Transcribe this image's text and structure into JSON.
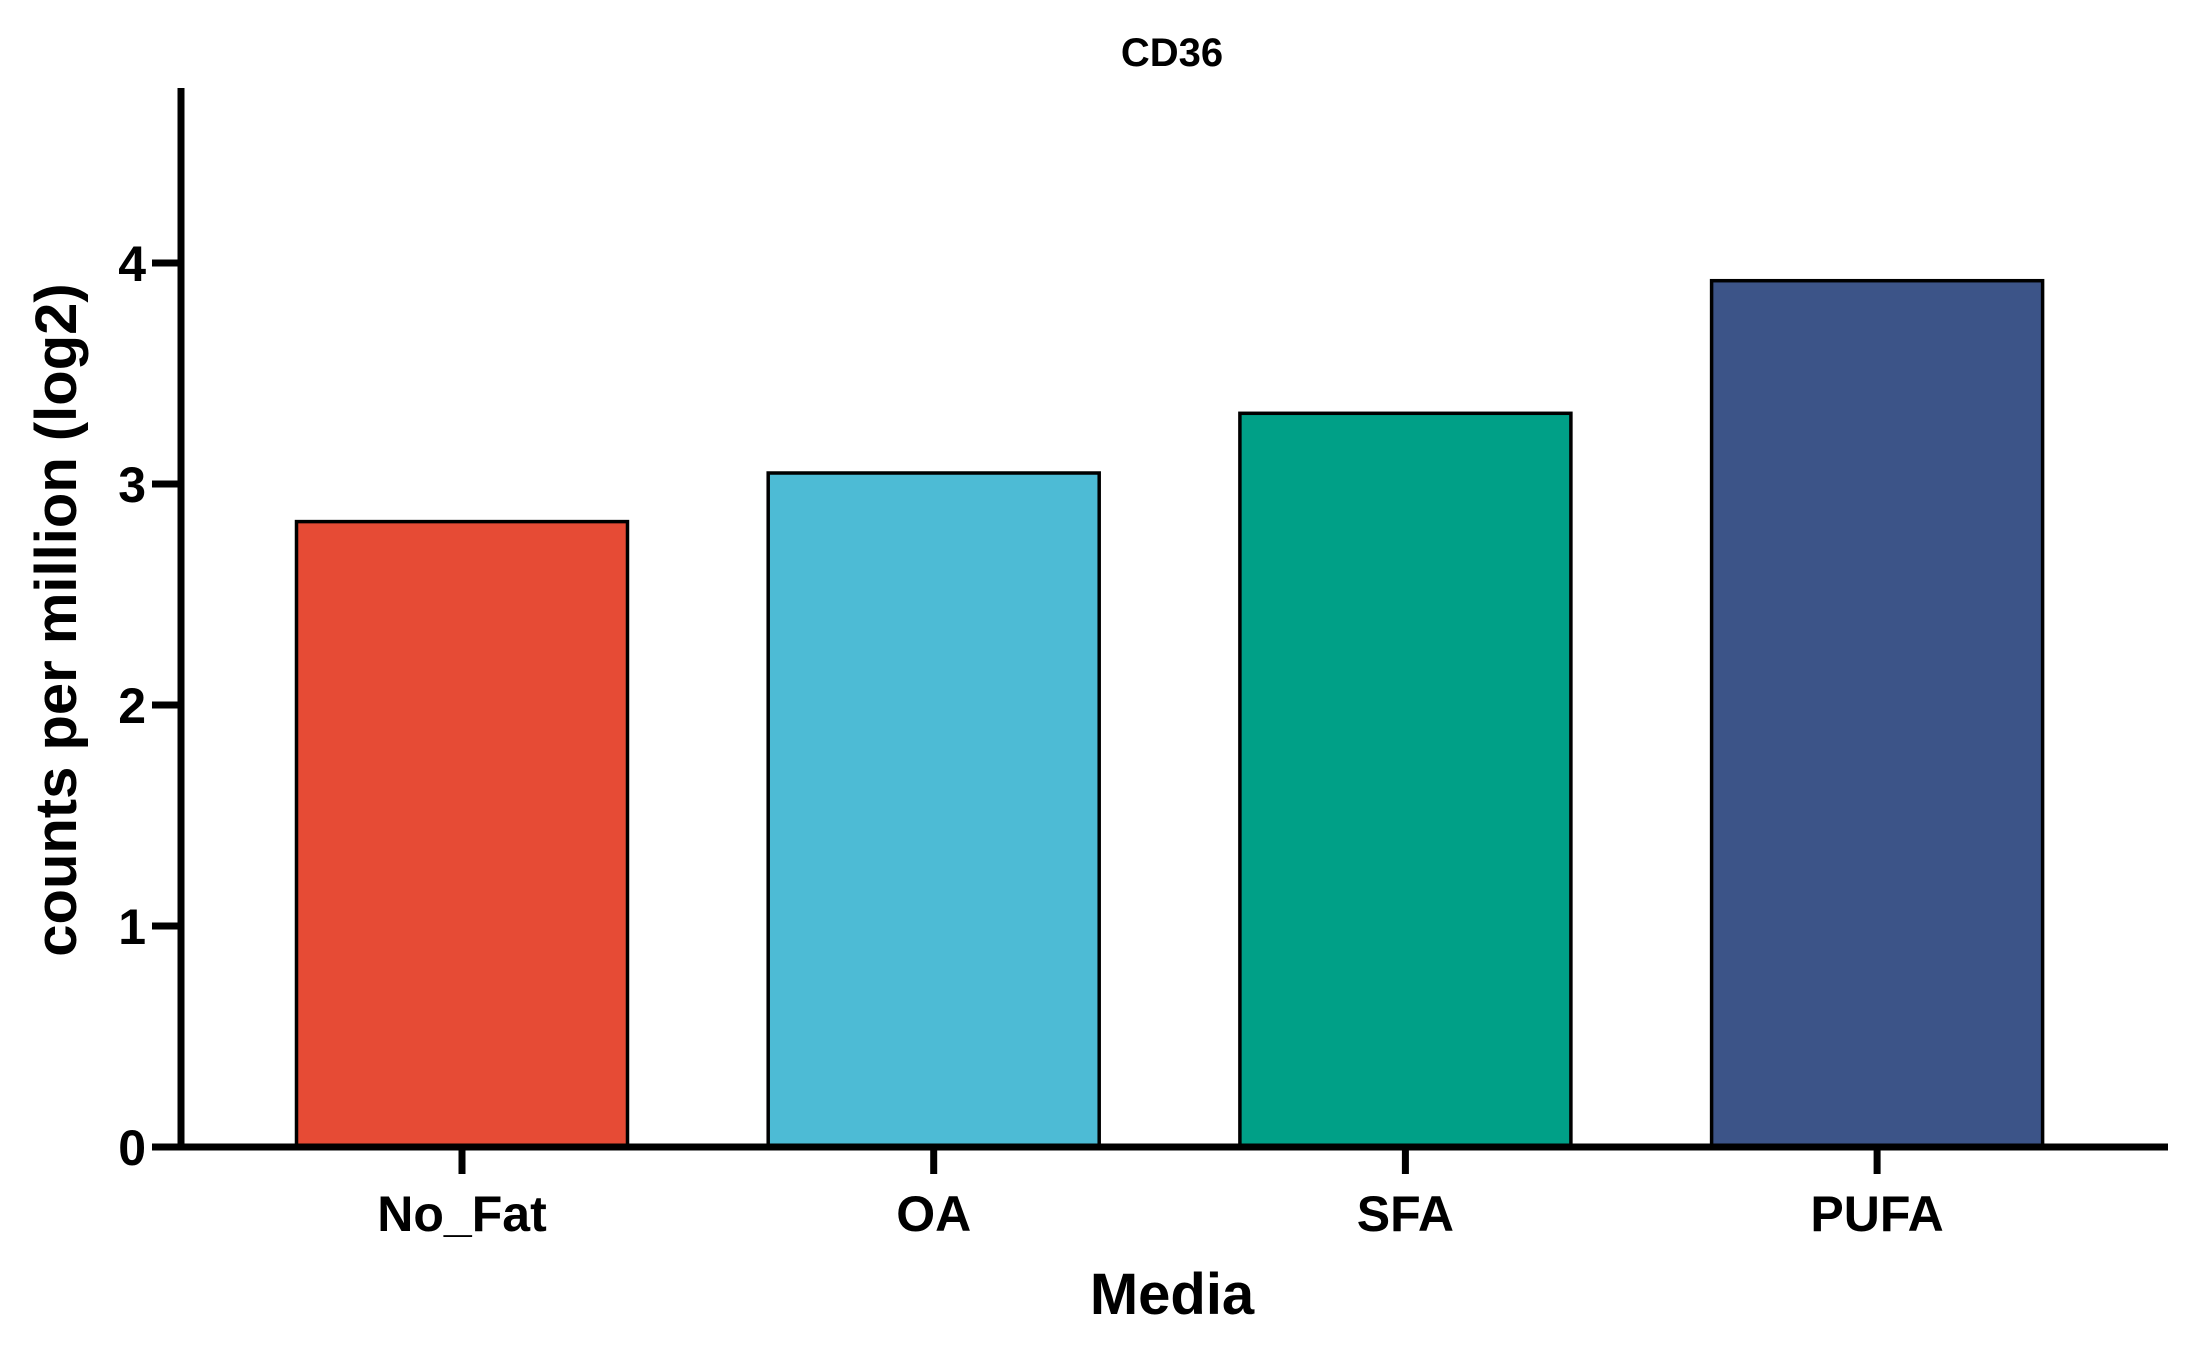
{
  "chart_data": {
    "type": "bar",
    "title": "CD36",
    "xlabel": "Media",
    "ylabel": "counts per million (log2)",
    "categories": [
      "No_Fat",
      "OA",
      "SFA",
      "PUFA"
    ],
    "values": [
      2.83,
      3.05,
      3.32,
      3.92
    ],
    "colors": [
      "#E64B35",
      "#4DBBD5",
      "#00A087",
      "#3C5488"
    ],
    "ylim": [
      0,
      4.8
    ],
    "yticks": [
      0,
      1,
      2,
      3,
      4
    ],
    "grid": false,
    "legend": "none"
  }
}
